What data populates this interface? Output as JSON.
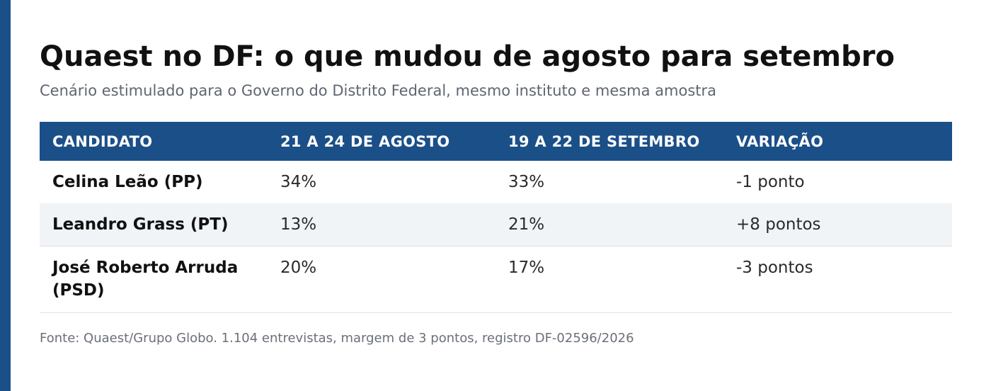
{
  "header": {
    "title": "Quaest no DF: o que mudou de agosto para setembro",
    "subtitle": "Cenário estimulado para o Governo do Distrito Federal, mesmo instituto e mesma amostra"
  },
  "table": {
    "columns": [
      "CANDIDATO",
      "21 A 24 DE AGOSTO",
      "19 A 22 DE SETEMBRO",
      "VARIAÇÃO"
    ],
    "rows": [
      {
        "candidate": "Celina Leão (PP)",
        "august": "34%",
        "september": "33%",
        "variation": "-1 ponto"
      },
      {
        "candidate": "Leandro Grass (PT)",
        "august": "13%",
        "september": "21%",
        "variation": "+8 pontos"
      },
      {
        "candidate": "José Roberto Arruda (PSD)",
        "august": "20%",
        "september": "17%",
        "variation": "-3 pontos"
      }
    ]
  },
  "footer": {
    "source": "Fonte: Quaest/Grupo Globo. 1.104 entrevistas, margem de 3 pontos, registro DF-02596/2026"
  },
  "colors": {
    "accent": "#1b4f88",
    "stripe": "#f0f4f7"
  }
}
